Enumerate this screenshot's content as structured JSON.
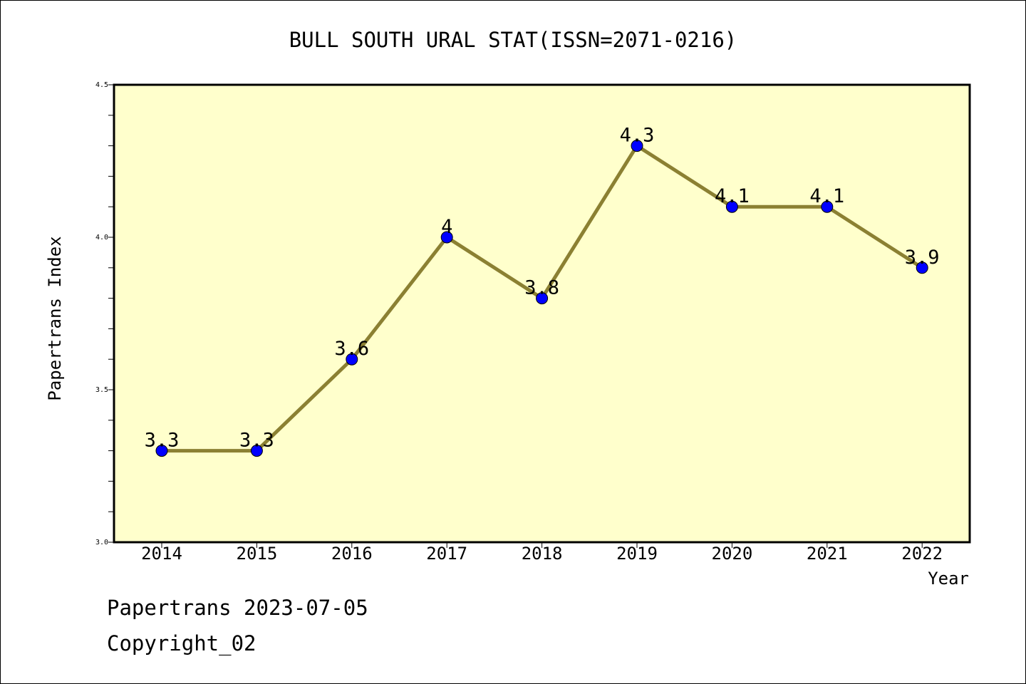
{
  "chart_data": {
    "type": "line",
    "title": "BULL SOUTH URAL STAT(ISSN=2071-0216)",
    "xlabel": "Year",
    "ylabel": "Papertrans Index",
    "categories": [
      "2014",
      "2015",
      "2016",
      "2017",
      "2018",
      "2019",
      "2020",
      "2021",
      "2022"
    ],
    "values": [
      3.3,
      3.3,
      3.6,
      4.0,
      3.8,
      4.3,
      4.1,
      4.1,
      3.9
    ],
    "data_labels": [
      "3.3",
      "3.3",
      "3.6",
      "4",
      "3.8",
      "4.3",
      "4.1",
      "4.1",
      "3.9"
    ],
    "ylim": [
      3.0,
      4.5
    ],
    "yticks": [
      "3.0",
      "3.5",
      "4.0",
      "4.5"
    ],
    "y_minor_step": 0.1,
    "grid": false,
    "colors": {
      "plot_background": "#ffffcc",
      "line": "#8b8032",
      "marker": "#0000ff"
    }
  },
  "footer": {
    "line1": "Papertrans 2023-07-05",
    "line2": "Copyright_02"
  }
}
